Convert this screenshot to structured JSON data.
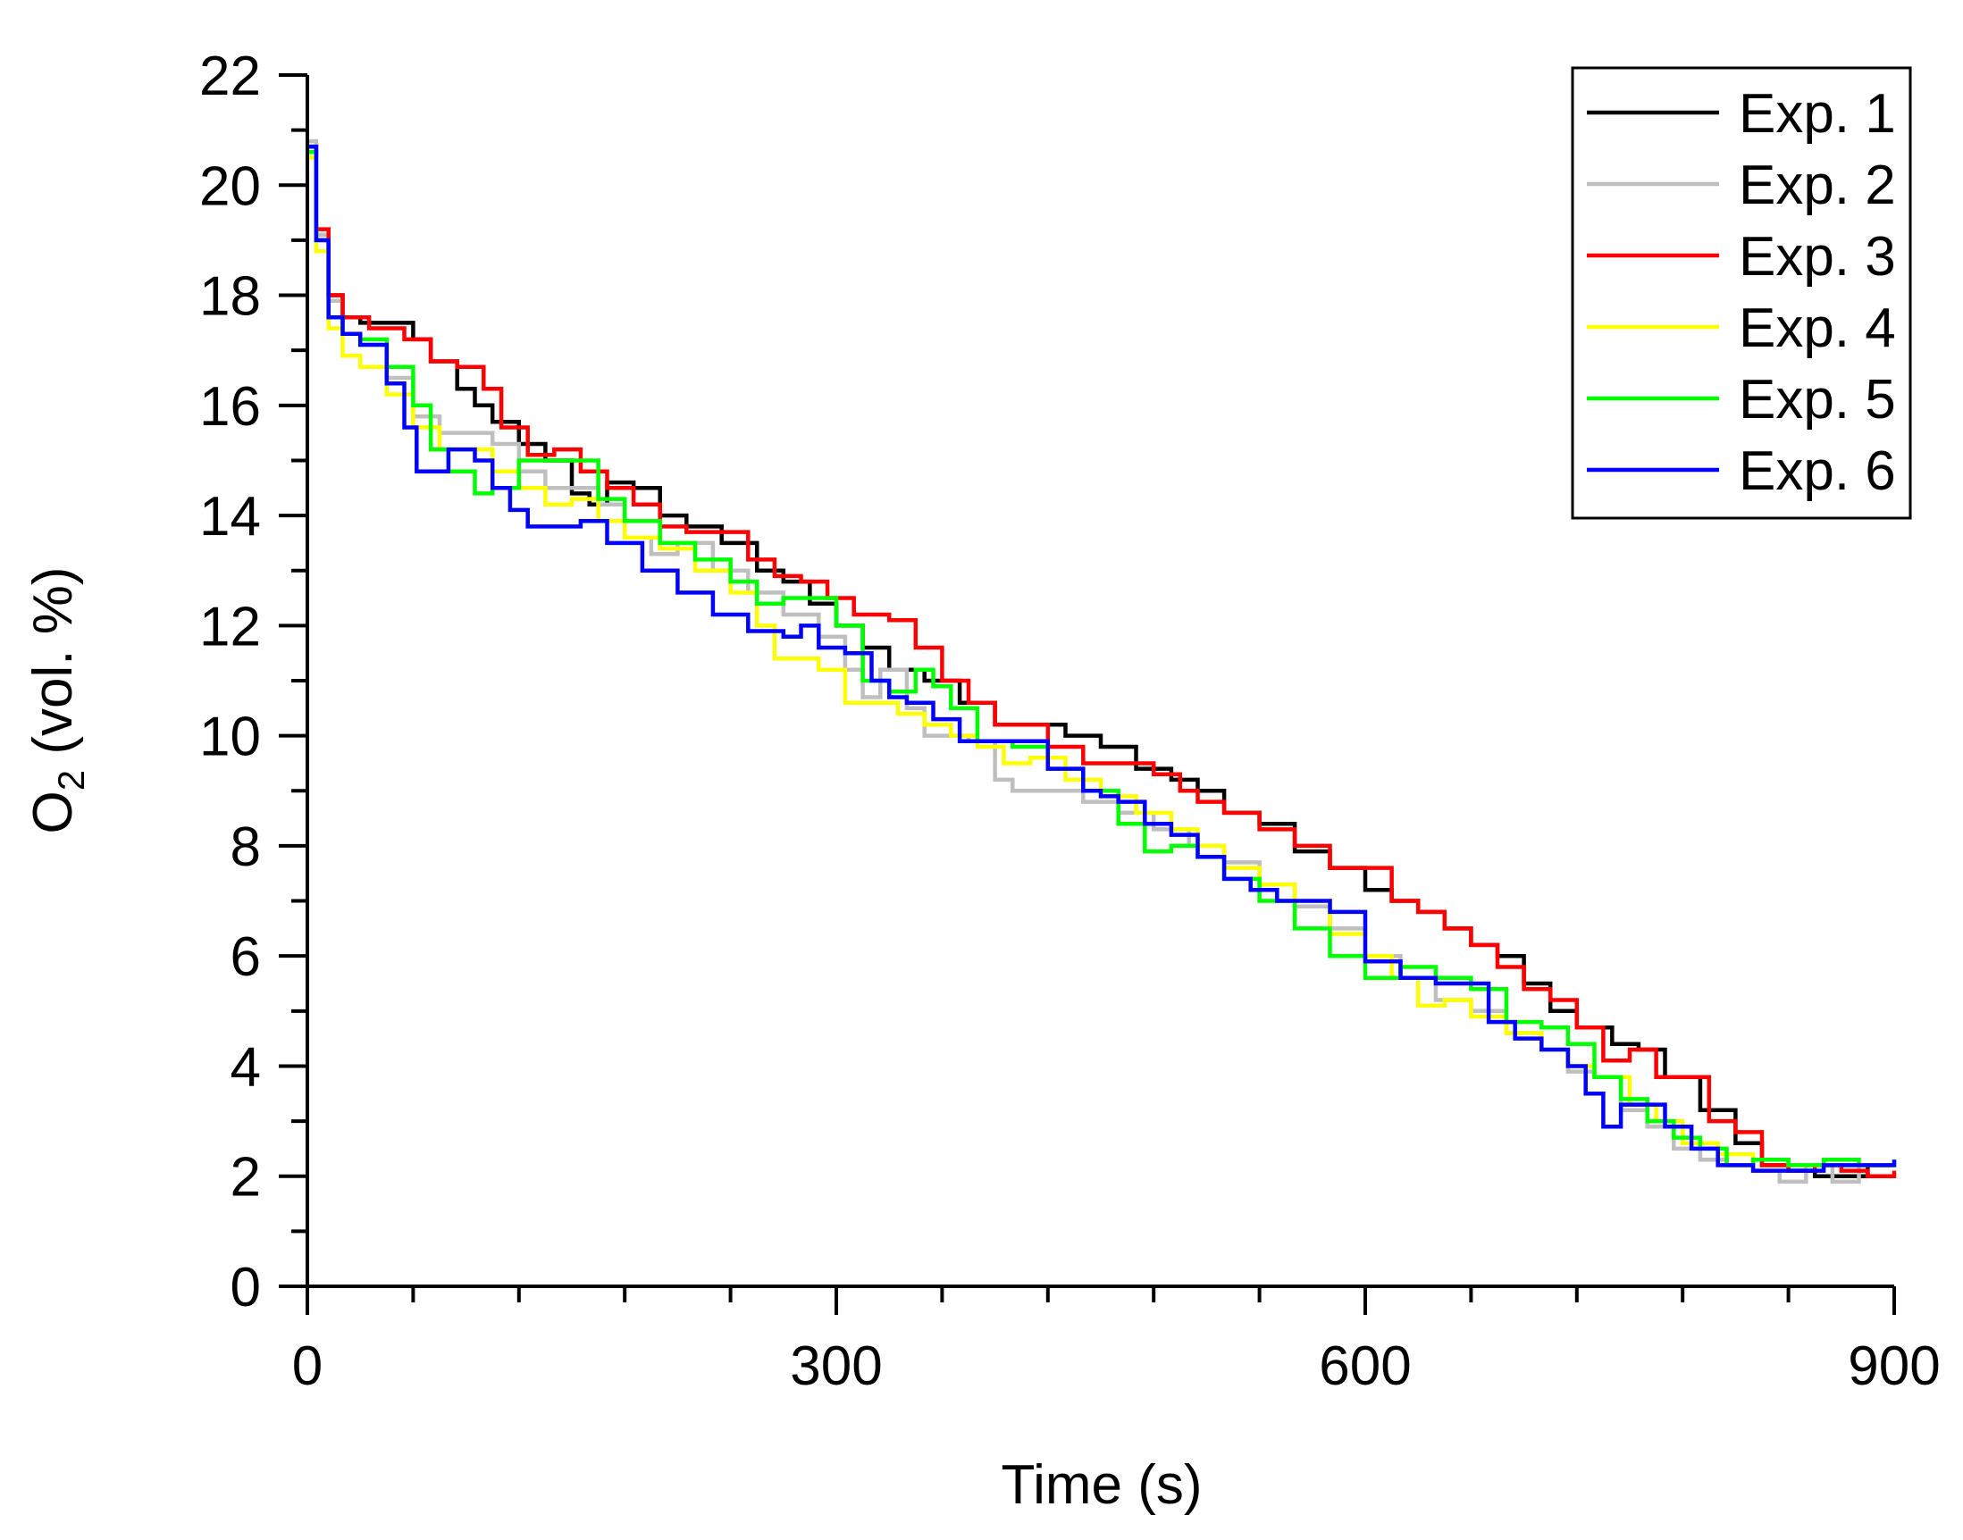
{
  "chart_data": {
    "type": "line",
    "title": "",
    "xlabel": "Time (s)",
    "ylabel": {
      "prefix": "O",
      "subscript": "2",
      "suffix": " (vol. %)"
    },
    "xlim": [
      0,
      900
    ],
    "ylim": [
      0,
      22
    ],
    "xticks": [
      0,
      300,
      600,
      900
    ],
    "xtick_labels": [
      "0",
      "300",
      "600",
      "900"
    ],
    "xminor_step": 60,
    "yticks": [
      0,
      2,
      4,
      6,
      8,
      10,
      12,
      14,
      16,
      18,
      20,
      22
    ],
    "ytick_labels": [
      "0",
      "2",
      "4",
      "6",
      "8",
      "10",
      "12",
      "14",
      "16",
      "18",
      "20",
      "22"
    ],
    "yminor_step": 1,
    "grid": false,
    "legend_position": "top-right",
    "series": [
      {
        "name": "Exp. 1",
        "color": "#000000",
        "x": [
          0,
          5,
          12,
          20,
          30,
          50,
          60,
          70,
          85,
          95,
          105,
          120,
          135,
          150,
          160,
          170,
          185,
          200,
          215,
          235,
          255,
          270,
          285,
          300,
          315,
          330,
          350,
          370,
          390,
          410,
          430,
          450,
          470,
          490,
          505,
          520,
          540,
          560,
          580,
          600,
          615,
          630,
          645,
          660,
          675,
          690,
          705,
          720,
          740,
          755,
          770,
          790,
          810,
          825,
          840,
          855,
          870,
          885,
          900
        ],
        "y": [
          20.7,
          19.0,
          18.0,
          17.6,
          17.5,
          17.5,
          17.2,
          16.8,
          16.3,
          16.0,
          15.7,
          15.3,
          15.0,
          14.4,
          14.2,
          14.6,
          14.5,
          14.0,
          13.8,
          13.5,
          13.0,
          12.8,
          12.4,
          12.0,
          11.6,
          11.2,
          11.0,
          10.6,
          10.2,
          10.2,
          10.0,
          9.8,
          9.4,
          9.2,
          9.0,
          8.6,
          8.4,
          7.9,
          7.6,
          7.2,
          7.0,
          6.8,
          6.5,
          6.2,
          6.0,
          5.5,
          5.0,
          4.7,
          4.4,
          4.3,
          3.8,
          3.2,
          2.6,
          2.2,
          2.1,
          2.0,
          2.0,
          2.2,
          2.2
        ]
      },
      {
        "name": "Exp. 2",
        "color": "#bfbfbf",
        "x": [
          0,
          5,
          12,
          20,
          30,
          45,
          60,
          75,
          90,
          105,
          120,
          135,
          150,
          165,
          180,
          195,
          210,
          230,
          250,
          270,
          290,
          305,
          315,
          325,
          340,
          350,
          360,
          375,
          390,
          400,
          420,
          440,
          460,
          480,
          500,
          520,
          540,
          560,
          580,
          600,
          620,
          640,
          660,
          680,
          700,
          715,
          730,
          745,
          760,
          775,
          790,
          805,
          820,
          835,
          850,
          865,
          880,
          900
        ],
        "y": [
          20.8,
          19.1,
          17.9,
          17.3,
          17.1,
          16.5,
          15.8,
          15.5,
          15.5,
          15.3,
          14.8,
          14.5,
          14.5,
          14.2,
          13.6,
          13.3,
          13.5,
          13.0,
          12.6,
          12.2,
          11.8,
          11.2,
          10.7,
          11.2,
          10.5,
          10.0,
          10.0,
          9.9,
          9.2,
          9.0,
          9.0,
          8.8,
          8.6,
          8.3,
          8.0,
          7.7,
          7.3,
          6.9,
          6.5,
          6.0,
          5.6,
          5.2,
          5.0,
          4.6,
          4.3,
          3.9,
          3.8,
          3.2,
          2.9,
          2.5,
          2.3,
          2.2,
          2.1,
          1.9,
          2.2,
          1.9,
          2.2,
          2.2
        ]
      },
      {
        "name": "Exp. 3",
        "color": "#ff0000",
        "x": [
          0,
          5,
          12,
          20,
          35,
          55,
          70,
          85,
          100,
          110,
          125,
          140,
          155,
          170,
          185,
          200,
          215,
          235,
          250,
          265,
          280,
          295,
          310,
          330,
          345,
          360,
          375,
          390,
          405,
          420,
          440,
          460,
          480,
          495,
          505,
          520,
          540,
          560,
          580,
          600,
          615,
          630,
          645,
          660,
          675,
          690,
          705,
          720,
          735,
          750,
          765,
          780,
          795,
          810,
          825,
          840,
          855,
          870,
          885,
          900
        ],
        "y": [
          20.6,
          19.2,
          18.0,
          17.6,
          17.4,
          17.2,
          16.8,
          16.7,
          16.3,
          15.6,
          15.1,
          15.2,
          14.8,
          14.5,
          14.2,
          13.8,
          13.7,
          13.7,
          13.2,
          12.9,
          12.8,
          12.5,
          12.2,
          12.1,
          11.6,
          11.0,
          10.6,
          10.2,
          10.2,
          9.8,
          9.5,
          9.5,
          9.3,
          9.0,
          8.8,
          8.6,
          8.3,
          8.0,
          7.6,
          7.6,
          7.0,
          6.8,
          6.5,
          6.2,
          5.8,
          5.4,
          5.2,
          4.7,
          4.1,
          4.3,
          3.8,
          3.8,
          3.0,
          2.8,
          2.2,
          2.1,
          2.2,
          2.1,
          2.0,
          2.1
        ]
      },
      {
        "name": "Exp. 4",
        "color": "#ffff00",
        "x": [
          0,
          5,
          12,
          20,
          30,
          45,
          60,
          75,
          90,
          105,
          120,
          135,
          150,
          165,
          180,
          200,
          220,
          240,
          255,
          265,
          275,
          290,
          305,
          320,
          335,
          350,
          365,
          380,
          395,
          410,
          430,
          450,
          470,
          490,
          505,
          520,
          540,
          560,
          580,
          600,
          615,
          630,
          645,
          660,
          680,
          700,
          715,
          730,
          750,
          765,
          780,
          800,
          820,
          840,
          860,
          880,
          900
        ],
        "y": [
          20.5,
          18.8,
          17.4,
          16.9,
          16.7,
          16.2,
          15.6,
          15.2,
          15.2,
          14.8,
          14.5,
          14.2,
          14.3,
          13.9,
          13.6,
          13.4,
          13.0,
          12.6,
          12.0,
          11.4,
          11.4,
          11.2,
          10.6,
          10.6,
          10.4,
          10.2,
          10.0,
          9.8,
          9.5,
          9.6,
          9.2,
          8.9,
          8.6,
          8.3,
          8.0,
          7.6,
          7.3,
          7.0,
          6.4,
          6.0,
          5.6,
          5.1,
          5.2,
          4.9,
          4.6,
          4.3,
          4.0,
          3.8,
          3.3,
          3.0,
          2.6,
          2.4,
          2.3,
          2.2,
          2.2,
          2.2,
          2.2
        ]
      },
      {
        "name": "Exp. 5",
        "color": "#00ff00",
        "x": [
          0,
          5,
          12,
          20,
          30,
          45,
          60,
          70,
          80,
          95,
          105,
          120,
          135,
          150,
          165,
          180,
          200,
          220,
          240,
          255,
          270,
          285,
          300,
          315,
          330,
          345,
          355,
          365,
          380,
          400,
          420,
          440,
          460,
          475,
          490,
          505,
          520,
          540,
          560,
          580,
          600,
          620,
          640,
          660,
          680,
          700,
          715,
          730,
          745,
          760,
          775,
          790,
          805,
          820,
          840,
          860,
          880,
          900
        ],
        "y": [
          20.6,
          19.0,
          17.6,
          17.3,
          17.2,
          16.7,
          16.0,
          15.2,
          14.8,
          14.4,
          14.5,
          15.0,
          15.0,
          15.0,
          14.3,
          13.9,
          13.5,
          13.2,
          12.8,
          12.4,
          12.5,
          12.5,
          12.0,
          11.0,
          10.8,
          11.2,
          10.9,
          10.5,
          9.9,
          9.8,
          9.4,
          9.0,
          8.4,
          7.9,
          8.0,
          7.8,
          7.4,
          7.0,
          6.5,
          6.0,
          5.6,
          5.8,
          5.6,
          5.4,
          4.8,
          4.7,
          4.4,
          3.8,
          3.4,
          3.0,
          2.7,
          2.5,
          2.2,
          2.3,
          2.2,
          2.3,
          2.2,
          2.3
        ]
      },
      {
        "name": "Exp. 6",
        "color": "#0000ff",
        "x": [
          0,
          5,
          12,
          20,
          30,
          45,
          55,
          62,
          70,
          80,
          95,
          105,
          115,
          125,
          140,
          155,
          170,
          190,
          210,
          230,
          250,
          270,
          280,
          290,
          305,
          320,
          330,
          340,
          355,
          370,
          385,
          400,
          420,
          430,
          440,
          450,
          460,
          475,
          490,
          505,
          520,
          535,
          550,
          565,
          580,
          600,
          620,
          640,
          655,
          670,
          685,
          700,
          715,
          725,
          735,
          745,
          755,
          770,
          785,
          800,
          820,
          840,
          860,
          880,
          900
        ],
        "y": [
          20.7,
          19.0,
          17.6,
          17.3,
          17.1,
          16.4,
          15.6,
          14.8,
          14.8,
          15.2,
          15.0,
          14.5,
          14.1,
          13.8,
          13.8,
          13.9,
          13.5,
          13.0,
          12.6,
          12.2,
          11.9,
          11.8,
          12.0,
          11.6,
          11.5,
          11.0,
          10.7,
          10.6,
          10.3,
          9.9,
          9.9,
          9.9,
          9.4,
          9.4,
          9.0,
          8.9,
          8.8,
          8.4,
          8.2,
          7.8,
          7.4,
          7.2,
          7.0,
          7.0,
          6.8,
          5.9,
          5.6,
          5.5,
          5.5,
          4.8,
          4.5,
          4.3,
          4.0,
          3.5,
          2.9,
          3.3,
          3.3,
          2.9,
          2.5,
          2.2,
          2.1,
          2.1,
          2.2,
          2.2,
          2.3
        ]
      }
    ]
  }
}
